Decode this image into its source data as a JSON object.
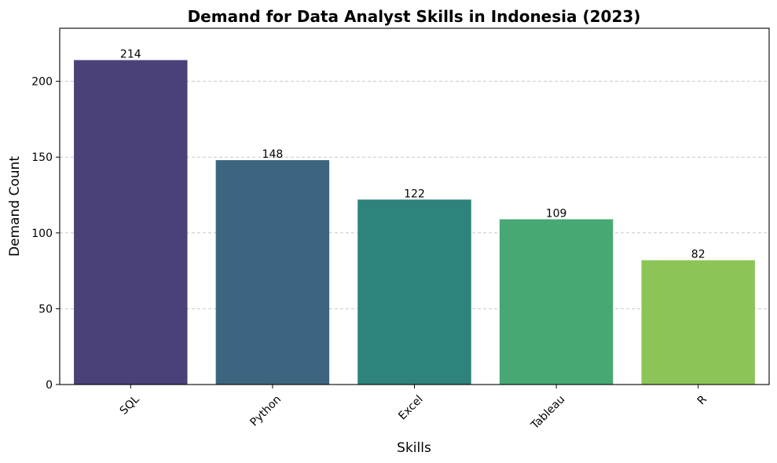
{
  "chart_data": {
    "type": "bar",
    "title": "Demand for Data Analyst Skills in Indonesia (2023)",
    "xlabel": "Skills",
    "ylabel": "Demand Count",
    "categories": [
      "SQL",
      "Python",
      "Excel",
      "Tableau",
      "R"
    ],
    "values": [
      214,
      148,
      122,
      109,
      82
    ],
    "data_labels": [
      "214",
      "148",
      "122",
      "109",
      "82"
    ],
    "colors": [
      "#4b4179",
      "#3d6580",
      "#2e837c",
      "#48a874",
      "#8dc457"
    ],
    "ylim": [
      0,
      235
    ],
    "yticks": [
      0,
      50,
      100,
      150,
      200
    ],
    "x_tick_rotation_deg": 45,
    "grid": "horizontal-dashed",
    "legend": "none"
  }
}
